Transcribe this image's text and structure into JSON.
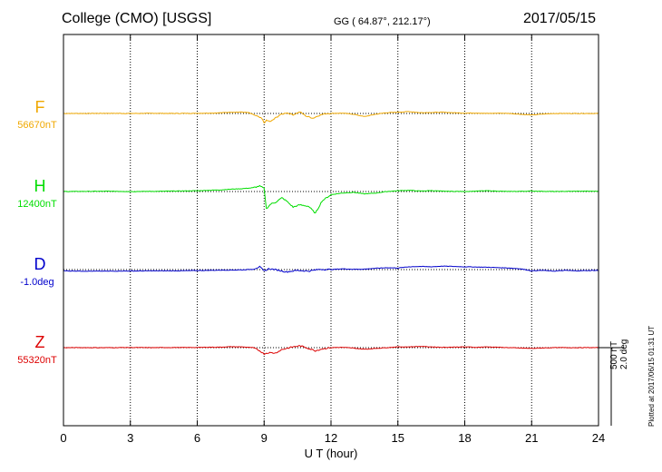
{
  "header": {
    "station": "College (CMO)  [USGS]",
    "coords": "GG ( 64.87°, 212.17°)",
    "date": "2017/05/15"
  },
  "scale_label": [
    "500 nT",
    "2.0 deg"
  ],
  "plotted_note": "Plotted at 2017/06/15 01:31  UT",
  "colors": {
    "F": "#f0a800",
    "H": "#00dd00",
    "D": "#0000cc",
    "Z": "#dd0000",
    "axis": "#000000",
    "grid": "#000000"
  },
  "chart_data": {
    "type": "line",
    "xlabel": "U T (hour)",
    "xlim": [
      0,
      24
    ],
    "xticks": [
      "0",
      "3",
      "6",
      "9",
      "12",
      "15",
      "18",
      "21",
      "24"
    ],
    "series": [
      {
        "name": "F",
        "baseline_label": "56670nT",
        "color": "#f0a800",
        "points": [
          [
            0,
            0
          ],
          [
            1,
            0
          ],
          [
            2,
            1
          ],
          [
            3,
            0
          ],
          [
            4,
            1
          ],
          [
            5,
            0
          ],
          [
            6,
            1
          ],
          [
            6.5,
            2
          ],
          [
            7,
            4
          ],
          [
            7.5,
            8
          ],
          [
            8,
            9
          ],
          [
            8.3,
            5
          ],
          [
            8.6,
            -12
          ],
          [
            8.9,
            -34
          ],
          [
            9.0,
            -60
          ],
          [
            9.1,
            -45
          ],
          [
            9.3,
            -52
          ],
          [
            9.5,
            -30
          ],
          [
            9.7,
            -10
          ],
          [
            10,
            5
          ],
          [
            10.3,
            -8
          ],
          [
            10.6,
            10
          ],
          [
            10.9,
            -18
          ],
          [
            11.2,
            -30
          ],
          [
            11.5,
            -10
          ],
          [
            11.8,
            0
          ],
          [
            12,
            0
          ],
          [
            12.5,
            2
          ],
          [
            13,
            -5
          ],
          [
            13.5,
            -20
          ],
          [
            14,
            -5
          ],
          [
            14.5,
            5
          ],
          [
            15,
            8
          ],
          [
            15.5,
            12
          ],
          [
            16,
            5
          ],
          [
            17,
            8
          ],
          [
            18,
            2
          ],
          [
            18.5,
            3
          ],
          [
            19,
            0
          ],
          [
            19.5,
            2
          ],
          [
            20,
            0
          ],
          [
            20.5,
            -5
          ],
          [
            21,
            -10
          ],
          [
            21.5,
            -4
          ],
          [
            22,
            0
          ],
          [
            23,
            0
          ],
          [
            24,
            0
          ]
        ]
      },
      {
        "name": "H",
        "baseline_label": "12400nT",
        "color": "#00dd00",
        "points": [
          [
            0,
            0
          ],
          [
            1,
            1
          ],
          [
            2,
            2
          ],
          [
            3,
            0
          ],
          [
            4,
            1
          ],
          [
            5,
            3
          ],
          [
            6,
            5
          ],
          [
            6.5,
            8
          ],
          [
            7,
            10
          ],
          [
            7.5,
            15
          ],
          [
            8,
            18
          ],
          [
            8.5,
            24
          ],
          [
            8.8,
            35
          ],
          [
            9.0,
            20
          ],
          [
            9.1,
            -110
          ],
          [
            9.3,
            -80
          ],
          [
            9.5,
            -70
          ],
          [
            9.8,
            -40
          ],
          [
            10,
            -60
          ],
          [
            10.3,
            -100
          ],
          [
            10.6,
            -85
          ],
          [
            11,
            -95
          ],
          [
            11.3,
            -140
          ],
          [
            11.6,
            -60
          ],
          [
            12,
            -20
          ],
          [
            12.5,
            -10
          ],
          [
            13,
            -5
          ],
          [
            13.5,
            -15
          ],
          [
            14,
            -10
          ],
          [
            14.5,
            0
          ],
          [
            15,
            5
          ],
          [
            15.5,
            8
          ],
          [
            16,
            3
          ],
          [
            16.5,
            6
          ],
          [
            17,
            2
          ],
          [
            18,
            0
          ],
          [
            19,
            5
          ],
          [
            20,
            0
          ],
          [
            21,
            3
          ],
          [
            22,
            0
          ],
          [
            23,
            2
          ],
          [
            24,
            2
          ]
        ]
      },
      {
        "name": "D",
        "baseline_label": "-1.0deg",
        "color": "#0000cc",
        "points": [
          [
            0,
            -8
          ],
          [
            1,
            -10
          ],
          [
            2,
            -10
          ],
          [
            3,
            -9
          ],
          [
            4,
            -8
          ],
          [
            5,
            -8
          ],
          [
            6,
            -6
          ],
          [
            7,
            -4
          ],
          [
            8,
            -2
          ],
          [
            8.5,
            2
          ],
          [
            8.8,
            18
          ],
          [
            9.0,
            -10
          ],
          [
            9.2,
            5
          ],
          [
            9.5,
            0
          ],
          [
            10,
            -15
          ],
          [
            10.5,
            -5
          ],
          [
            11,
            -10
          ],
          [
            11.5,
            2
          ],
          [
            12,
            0
          ],
          [
            12.5,
            5
          ],
          [
            13,
            2
          ],
          [
            13.5,
            3
          ],
          [
            14,
            8
          ],
          [
            14.5,
            12
          ],
          [
            15,
            10
          ],
          [
            15.5,
            18
          ],
          [
            16,
            20
          ],
          [
            16.5,
            18
          ],
          [
            17,
            22
          ],
          [
            17.5,
            20
          ],
          [
            18,
            18
          ],
          [
            19,
            15
          ],
          [
            20,
            10
          ],
          [
            20.5,
            5
          ],
          [
            21,
            -8
          ],
          [
            21.5,
            -5
          ],
          [
            22,
            -10
          ],
          [
            22.5,
            -5
          ],
          [
            23,
            -8
          ],
          [
            24,
            -5
          ]
        ]
      },
      {
        "name": "Z",
        "baseline_label": "55320nT",
        "color": "#dd0000",
        "points": [
          [
            0,
            0
          ],
          [
            1,
            0
          ],
          [
            2,
            0
          ],
          [
            3,
            1
          ],
          [
            4,
            0
          ],
          [
            5,
            1
          ],
          [
            6,
            1
          ],
          [
            6.5,
            3
          ],
          [
            7,
            3
          ],
          [
            7.5,
            6
          ],
          [
            8,
            5
          ],
          [
            8.5,
            0
          ],
          [
            8.8,
            -20
          ],
          [
            9.0,
            -40
          ],
          [
            9.2,
            -32
          ],
          [
            9.5,
            -35
          ],
          [
            9.8,
            -12
          ],
          [
            10,
            -5
          ],
          [
            10.3,
            5
          ],
          [
            10.6,
            12
          ],
          [
            11,
            -5
          ],
          [
            11.3,
            -20
          ],
          [
            11.6,
            -8
          ],
          [
            12,
            0
          ],
          [
            12.5,
            2
          ],
          [
            13,
            -3
          ],
          [
            13.5,
            -10
          ],
          [
            14,
            -5
          ],
          [
            14.5,
            0
          ],
          [
            15,
            5
          ],
          [
            15.5,
            5
          ],
          [
            16,
            8
          ],
          [
            17,
            2
          ],
          [
            18,
            5
          ],
          [
            18.5,
            2
          ],
          [
            19,
            5
          ],
          [
            20,
            0
          ],
          [
            21,
            -5
          ],
          [
            21.5,
            -2
          ],
          [
            22,
            0
          ],
          [
            23,
            0
          ],
          [
            24,
            0
          ]
        ]
      }
    ]
  }
}
